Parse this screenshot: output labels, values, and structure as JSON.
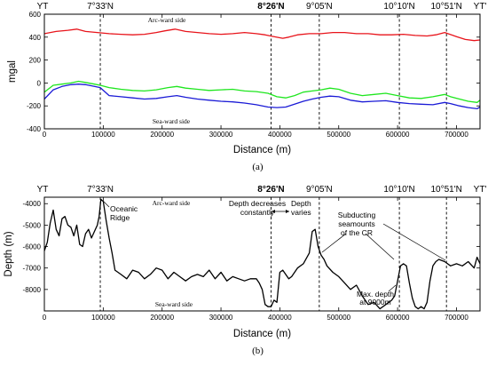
{
  "chart_data": [
    {
      "id": "a",
      "type": "line",
      "caption": "(a)",
      "xlabel": "Distance (m)",
      "ylabel": "mgal",
      "xlim": [
        0,
        740000
      ],
      "ylim": [
        -400,
        600
      ],
      "x_ticks": [
        "0",
        "100000",
        "200000",
        "300000",
        "400000",
        "500000",
        "600000",
        "700000"
      ],
      "y_ticks": [
        "600",
        "400",
        "200",
        "0",
        "-200",
        "-400"
      ],
      "y_tick_values": [
        600,
        400,
        200,
        0,
        -200,
        -400
      ],
      "end_labels": {
        "left": "YT",
        "right": "YT'"
      },
      "markers": [
        {
          "label": "7°33'N",
          "x": 95000,
          "bold": false
        },
        {
          "label": "8°26'N",
          "x": 385000,
          "bold": true
        },
        {
          "label": "9°05'N",
          "x": 467000,
          "bold": false
        },
        {
          "label": "10°10'N",
          "x": 603000,
          "bold": false
        },
        {
          "label": "10°51'N",
          "x": 683000,
          "bold": false
        }
      ],
      "side_labels": {
        "top": "Arc-ward side",
        "bottom": "Sea-ward side"
      },
      "series": [
        {
          "color": "#e8141b",
          "x": [
            0,
            20000,
            40000,
            55000,
            70000,
            90000,
            110000,
            130000,
            150000,
            170000,
            190000,
            205000,
            222000,
            240000,
            260000,
            280000,
            300000,
            320000,
            340000,
            360000,
            375000,
            390000,
            405000,
            415000,
            430000,
            450000,
            470000,
            490000,
            510000,
            530000,
            550000,
            570000,
            590000,
            610000,
            630000,
            650000,
            665000,
            680000,
            700000,
            715000,
            730000,
            740000
          ],
          "y": [
            430,
            450,
            460,
            470,
            450,
            440,
            430,
            425,
            420,
            425,
            440,
            455,
            470,
            450,
            440,
            430,
            425,
            430,
            440,
            430,
            420,
            405,
            390,
            400,
            420,
            430,
            430,
            440,
            440,
            430,
            430,
            420,
            420,
            425,
            415,
            410,
            420,
            440,
            405,
            380,
            370,
            375
          ]
        },
        {
          "color": "#1ee61e",
          "x": [
            0,
            15000,
            30000,
            45000,
            58000,
            70000,
            85000,
            95000,
            110000,
            130000,
            150000,
            170000,
            190000,
            210000,
            225000,
            240000,
            260000,
            280000,
            300000,
            320000,
            340000,
            360000,
            380000,
            395000,
            410000,
            425000,
            440000,
            455000,
            470000,
            485000,
            500000,
            520000,
            540000,
            560000,
            580000,
            600000,
            620000,
            640000,
            660000,
            680000,
            690000,
            705000,
            720000,
            735000,
            740000
          ],
          "y": [
            -80,
            -20,
            -10,
            0,
            15,
            5,
            -10,
            -20,
            -40,
            -55,
            -65,
            -70,
            -60,
            -40,
            -30,
            -45,
            -55,
            -65,
            -60,
            -55,
            -70,
            -75,
            -90,
            -120,
            -130,
            -110,
            -80,
            -70,
            -60,
            -45,
            -55,
            -90,
            -110,
            -100,
            -90,
            -110,
            -130,
            -135,
            -120,
            -100,
            -120,
            -140,
            -160,
            -170,
            -150
          ]
        },
        {
          "color": "#1a1ad6",
          "x": [
            0,
            15000,
            30000,
            45000,
            58000,
            70000,
            85000,
            95000,
            110000,
            130000,
            150000,
            170000,
            190000,
            210000,
            225000,
            240000,
            260000,
            280000,
            300000,
            320000,
            340000,
            360000,
            380000,
            395000,
            410000,
            425000,
            440000,
            455000,
            470000,
            485000,
            500000,
            520000,
            540000,
            560000,
            580000,
            600000,
            620000,
            640000,
            660000,
            680000,
            690000,
            705000,
            720000,
            735000,
            740000
          ],
          "y": [
            -140,
            -60,
            -30,
            -15,
            -10,
            -15,
            -30,
            -40,
            -110,
            -120,
            -130,
            -140,
            -135,
            -120,
            -110,
            -125,
            -140,
            -150,
            -160,
            -165,
            -175,
            -190,
            -210,
            -215,
            -210,
            -185,
            -160,
            -140,
            -125,
            -115,
            -120,
            -150,
            -165,
            -160,
            -155,
            -170,
            -180,
            -185,
            -190,
            -170,
            -180,
            -200,
            -215,
            -225,
            -210
          ]
        }
      ]
    },
    {
      "id": "b",
      "type": "line",
      "caption": "(b)",
      "xlabel": "Distance (m)",
      "ylabel": "Depth (m)",
      "xlim": [
        0,
        740000
      ],
      "ylim": [
        -9000,
        -3700
      ],
      "x_ticks": [
        "0",
        "100000",
        "200000",
        "300000",
        "400000",
        "500000",
        "600000",
        "700000"
      ],
      "y_ticks": [
        "-4000",
        "-5000",
        "-6000",
        "-7000",
        "-8000"
      ],
      "y_tick_values": [
        -4000,
        -5000,
        -6000,
        -7000,
        -8000
      ],
      "end_labels": {
        "left": "YT",
        "right": "YT'"
      },
      "markers": [
        {
          "label": "7°33'N",
          "x": 95000,
          "bold": false
        },
        {
          "label": "8°26'N",
          "x": 385000,
          "bold": true
        },
        {
          "label": "9°05'N",
          "x": 467000,
          "bold": false
        },
        {
          "label": "10°10'N",
          "x": 603000,
          "bold": false
        },
        {
          "label": "10°51'N",
          "x": 683000,
          "bold": false
        }
      ],
      "side_labels": {
        "top": "Arc-ward side",
        "bottom": "Sea-ward side"
      },
      "annotations": {
        "oceanic_ridge": "Oceanic\nRidge",
        "depth_decreases": "Depth decreases\nconstantly",
        "depth_varies": "Depth\nvaries",
        "subducting": "Subducting\nseamounts\nof the CR",
        "max_depth": "Max. depth\nat 9000m"
      },
      "series": [
        {
          "color": "#000000",
          "x": [
            0,
            5000,
            10000,
            15000,
            20000,
            25000,
            30000,
            35000,
            40000,
            45000,
            50000,
            55000,
            60000,
            65000,
            70000,
            75000,
            80000,
            85000,
            90000,
            93000,
            96000,
            100000,
            105000,
            110000,
            115000,
            120000,
            130000,
            140000,
            150000,
            160000,
            170000,
            180000,
            190000,
            200000,
            210000,
            220000,
            230000,
            240000,
            250000,
            260000,
            270000,
            280000,
            290000,
            300000,
            310000,
            320000,
            330000,
            340000,
            350000,
            360000,
            365000,
            370000,
            375000,
            380000,
            385000,
            390000,
            395000,
            400000,
            405000,
            410000,
            415000,
            420000,
            430000,
            440000,
            450000,
            455000,
            460000,
            465000,
            470000,
            475000,
            480000,
            490000,
            500000,
            510000,
            520000,
            530000,
            540000,
            550000,
            560000,
            570000,
            580000,
            590000,
            595000,
            600000,
            605000,
            610000,
            615000,
            620000,
            625000,
            630000,
            635000,
            640000,
            645000,
            650000,
            655000,
            660000,
            665000,
            670000,
            680000,
            690000,
            700000,
            710000,
            720000,
            730000,
            735000,
            740000
          ],
          "y": [
            -6200,
            -5800,
            -4900,
            -4300,
            -5200,
            -5500,
            -4700,
            -4600,
            -5000,
            -5100,
            -5500,
            -5000,
            -5900,
            -6000,
            -5400,
            -5200,
            -5600,
            -5300,
            -5000,
            -4600,
            -3800,
            -3900,
            -4800,
            -5600,
            -6300,
            -7100,
            -7300,
            -7500,
            -7100,
            -7200,
            -7500,
            -7300,
            -7000,
            -7100,
            -7500,
            -7200,
            -7400,
            -7600,
            -7400,
            -7300,
            -7400,
            -7100,
            -7500,
            -7200,
            -7600,
            -7400,
            -7500,
            -7600,
            -7500,
            -7500,
            -7700,
            -8000,
            -8700,
            -8800,
            -8800,
            -8500,
            -8600,
            -7200,
            -7100,
            -7300,
            -7500,
            -7400,
            -7000,
            -6800,
            -6300,
            -5300,
            -5200,
            -6000,
            -6400,
            -6600,
            -6900,
            -7200,
            -7400,
            -7700,
            -8000,
            -7800,
            -8300,
            -8700,
            -8600,
            -8900,
            -8700,
            -8500,
            -8300,
            -7600,
            -6900,
            -6800,
            -6900,
            -7700,
            -8400,
            -8800,
            -8900,
            -8800,
            -8900,
            -8600,
            -7600,
            -6900,
            -6700,
            -6600,
            -6700,
            -6900,
            -6800,
            -6900,
            -6700,
            -7000,
            -6500,
            -6800
          ]
        }
      ]
    }
  ]
}
